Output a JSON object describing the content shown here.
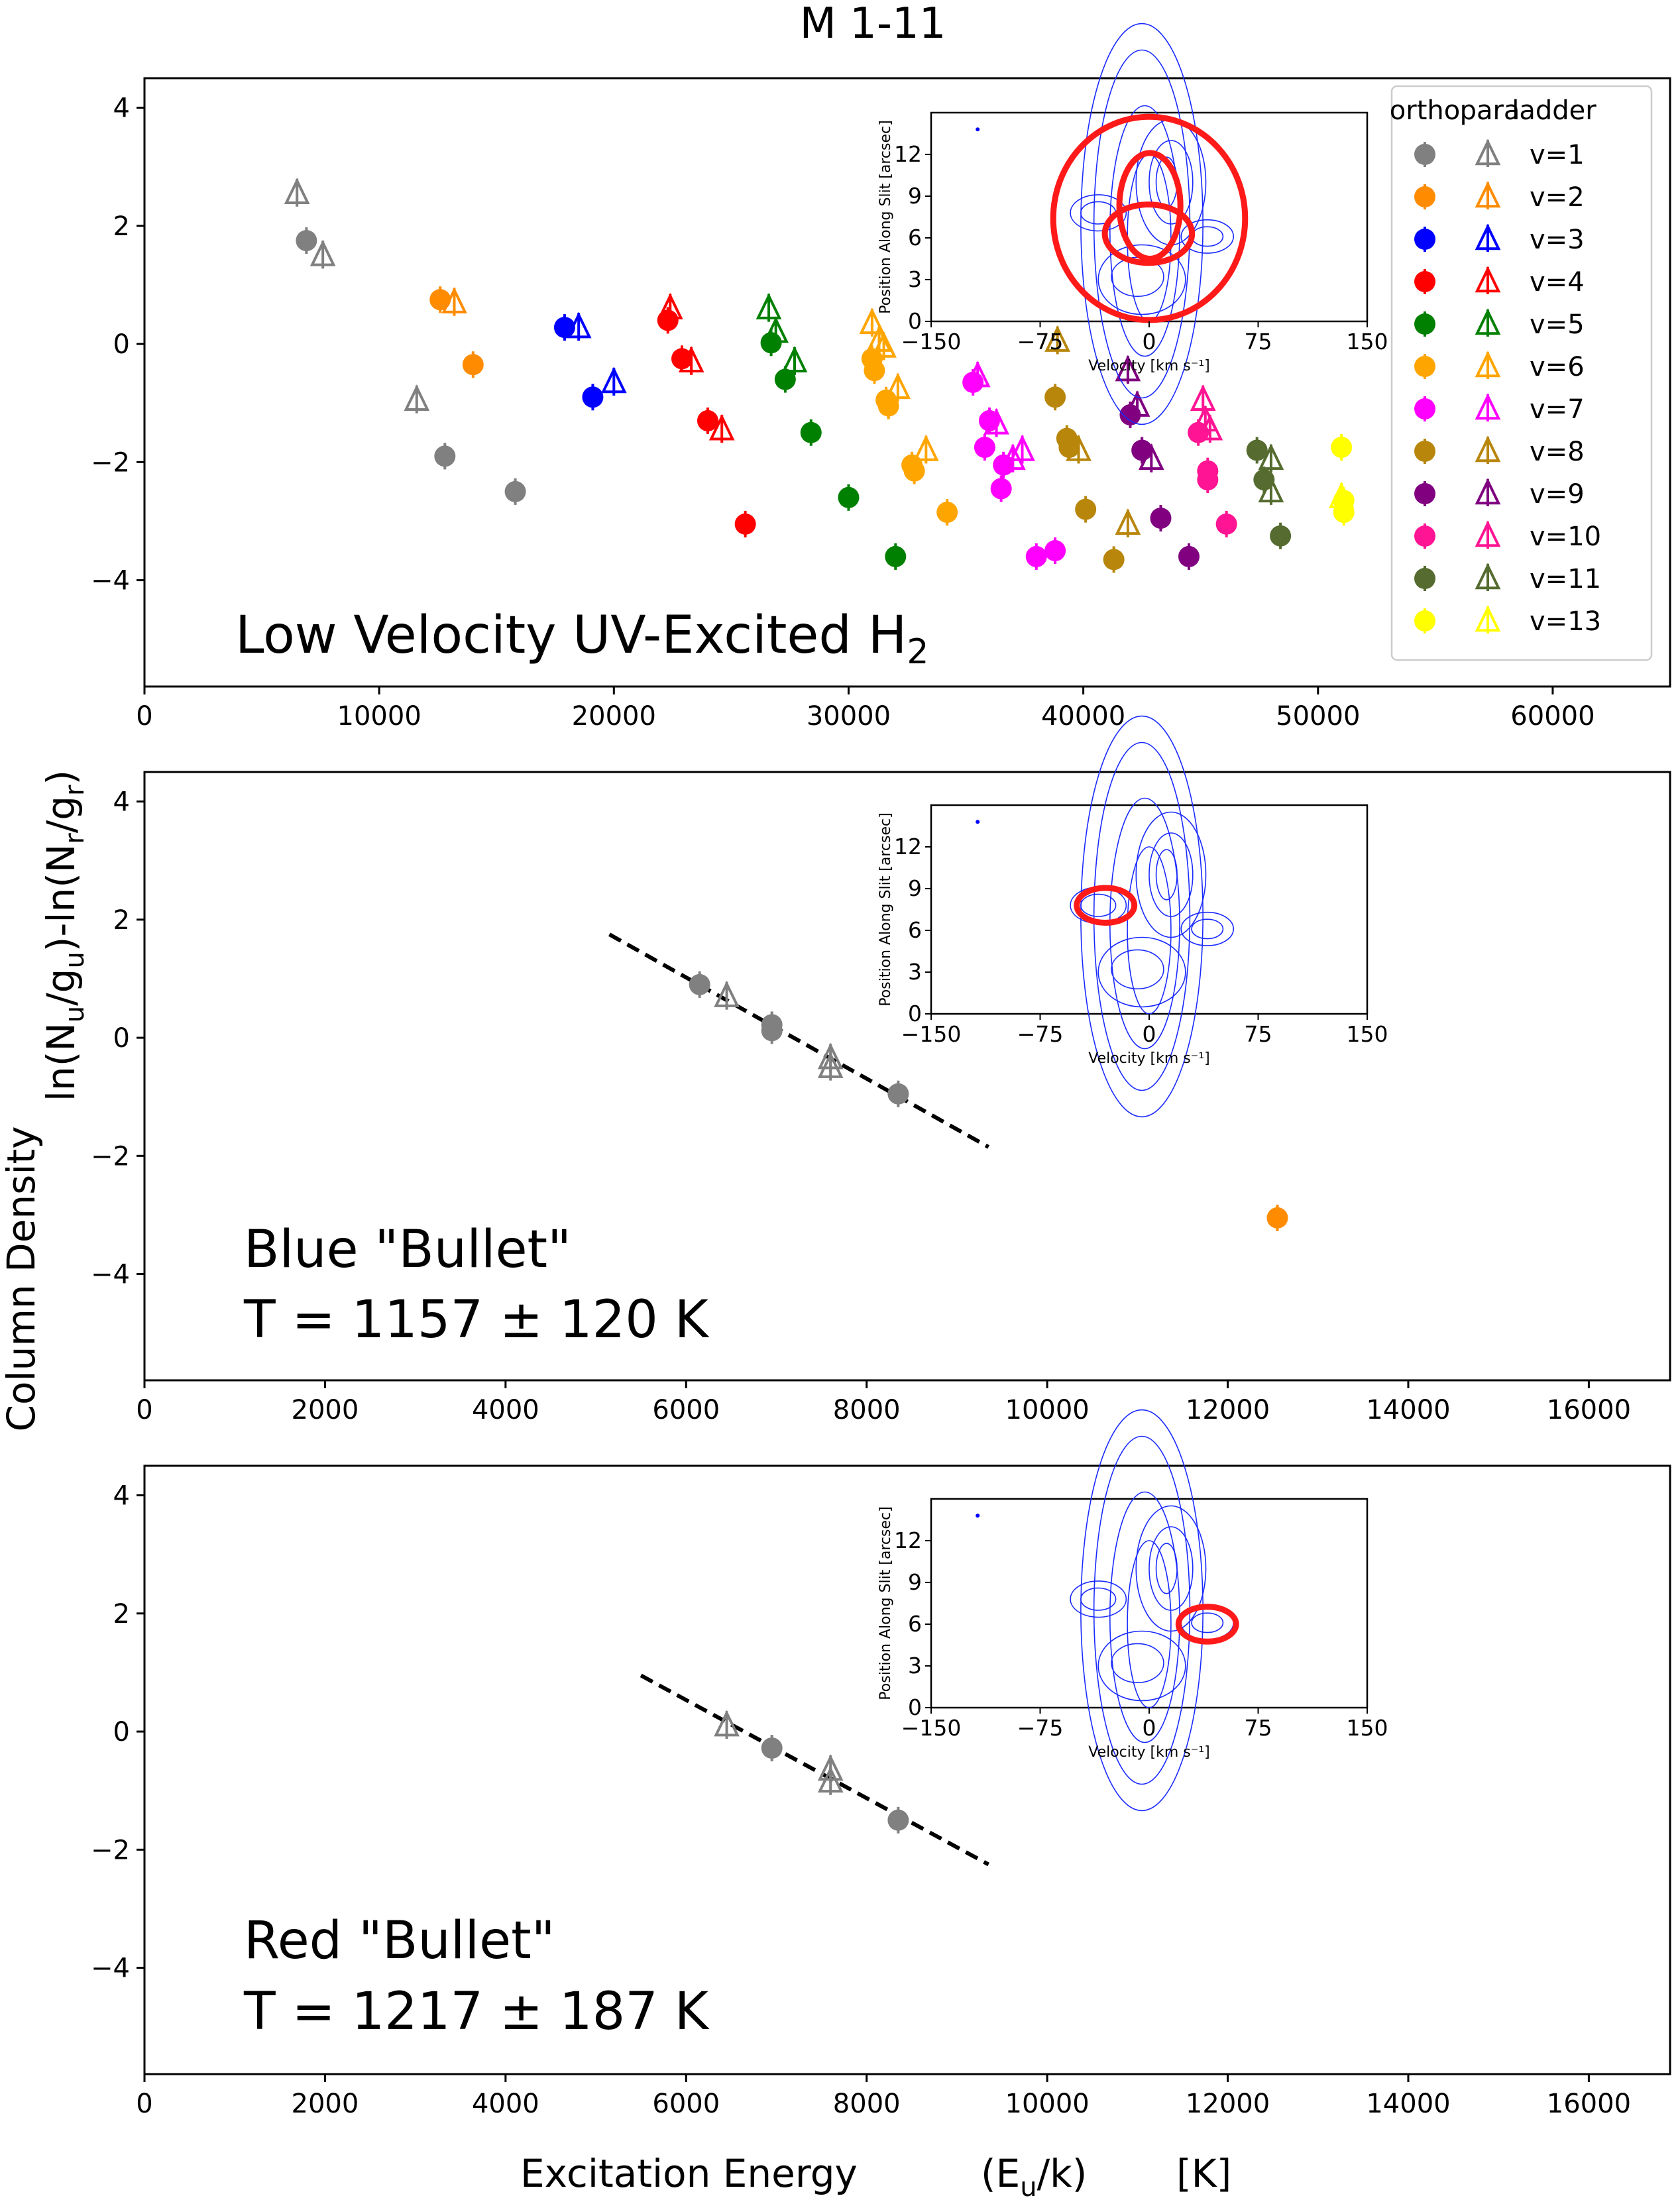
{
  "figure": {
    "title": "M 1-11",
    "xlabel_parts": [
      "Excitation Energy",
      "(E",
      "u",
      "/k)",
      "[K]"
    ],
    "ylabel_left": "Column Density",
    "ylabel_right_parts": [
      "ln(N",
      "u",
      "/g",
      "u",
      ")-ln(N",
      "r",
      "/g",
      "r",
      ")"
    ]
  },
  "legend": {
    "headers": [
      "ortho",
      "para",
      "ladder"
    ],
    "entries": [
      {
        "label": "v=1",
        "color": "#808080"
      },
      {
        "label": "v=2",
        "color": "#ff8c00"
      },
      {
        "label": "v=3",
        "color": "#0000ff"
      },
      {
        "label": "v=4",
        "color": "#ff0000"
      },
      {
        "label": "v=5",
        "color": "#008000"
      },
      {
        "label": "v=6",
        "color": "#ffa500"
      },
      {
        "label": "v=7",
        "color": "#ff00ff"
      },
      {
        "label": "v=8",
        "color": "#b8860b"
      },
      {
        "label": "v=9",
        "color": "#800080"
      },
      {
        "label": "v=10",
        "color": "#ff1493"
      },
      {
        "label": "v=11",
        "color": "#556b2f"
      },
      {
        "label": "v=13",
        "color": "#ffff00"
      }
    ]
  },
  "inset": {
    "xlabel": "Velocity [km s⁻¹]",
    "ylabel": "Position Along Slit [arcsec]",
    "xticks": [
      -150,
      -75,
      0,
      75,
      150
    ],
    "yticks": [
      0,
      3,
      6,
      9,
      12
    ],
    "xlim": [
      -150,
      150
    ],
    "ylim": [
      0,
      15
    ]
  },
  "chart_data": [
    {
      "type": "scatter",
      "title": "",
      "annotation": [
        "Low Velocity UV-Excited H",
        "2"
      ],
      "xlabel": "Excitation Energy (Eu/k) [K]",
      "ylabel": "ln(Nu/gu)-ln(Nr/gr)",
      "xlim": [
        0,
        65000
      ],
      "ylim": [
        -5.8,
        4.5
      ],
      "xticks": [
        0,
        10000,
        20000,
        30000,
        40000,
        50000,
        60000
      ],
      "yticks": [
        -4,
        -2,
        0,
        2,
        4
      ],
      "ytick_labels": [
        "−4",
        "−2",
        "0",
        "2",
        "4"
      ],
      "series": [
        {
          "name": "v=1",
          "color": "#808080",
          "ortho": [
            [
              6900,
              1.75
            ],
            [
              12800,
              -1.9
            ],
            [
              15800,
              -2.5
            ]
          ],
          "para": [
            [
              6500,
              2.55
            ],
            [
              7600,
              1.5
            ],
            [
              11600,
              -0.95
            ]
          ]
        },
        {
          "name": "v=2",
          "color": "#ff8c00",
          "ortho": [
            [
              12600,
              0.75
            ],
            [
              14000,
              -0.35
            ]
          ],
          "para": [
            [
              13200,
              0.7
            ]
          ]
        },
        {
          "name": "v=3",
          "color": "#0000ff",
          "ortho": [
            [
              17900,
              0.28
            ],
            [
              19100,
              -0.9
            ]
          ],
          "para": [
            [
              18500,
              0.28
            ],
            [
              20000,
              -0.65
            ]
          ]
        },
        {
          "name": "v=4",
          "color": "#ff0000",
          "ortho": [
            [
              22300,
              0.4
            ],
            [
              22900,
              -0.25
            ],
            [
              24000,
              -1.3
            ],
            [
              25600,
              -3.05
            ]
          ],
          "para": [
            [
              22400,
              0.6
            ],
            [
              23300,
              -0.3
            ],
            [
              24600,
              -1.45
            ]
          ]
        },
        {
          "name": "v=5",
          "color": "#008000",
          "ortho": [
            [
              26700,
              0.02
            ],
            [
              27300,
              -0.6
            ],
            [
              28400,
              -1.5
            ],
            [
              30000,
              -2.6
            ],
            [
              32000,
              -3.6
            ]
          ],
          "para": [
            [
              26600,
              0.6
            ],
            [
              26900,
              0.2
            ],
            [
              27700,
              -0.3
            ]
          ]
        },
        {
          "name": "v=6",
          "color": "#ffa500",
          "ortho": [
            [
              31000,
              -0.25
            ],
            [
              31100,
              -0.45
            ],
            [
              31600,
              -0.95
            ],
            [
              31700,
              -1.05
            ],
            [
              32700,
              -2.05
            ],
            [
              32800,
              -2.15
            ],
            [
              34200,
              -2.85
            ]
          ],
          "para": [
            [
              31000,
              0.35
            ],
            [
              31300,
              0.05
            ],
            [
              31500,
              -0.05
            ],
            [
              32100,
              -0.75
            ],
            [
              33300,
              -1.8
            ]
          ]
        },
        {
          "name": "v=7",
          "color": "#ff00ff",
          "ortho": [
            [
              35300,
              -0.65
            ],
            [
              35800,
              -1.75
            ],
            [
              36000,
              -1.3
            ],
            [
              36600,
              -2.05
            ],
            [
              36500,
              -2.45
            ],
            [
              38000,
              -3.6
            ],
            [
              38800,
              -3.5
            ]
          ],
          "para": [
            [
              35500,
              -0.55
            ],
            [
              36300,
              -1.35
            ],
            [
              37400,
              -1.8
            ],
            [
              37000,
              -1.95
            ]
          ]
        },
        {
          "name": "v=8",
          "color": "#b8860b",
          "ortho": [
            [
              38800,
              -0.9
            ],
            [
              39300,
              -1.6
            ],
            [
              39400,
              -1.75
            ],
            [
              40100,
              -2.8
            ],
            [
              41300,
              -3.65
            ]
          ],
          "para": [
            [
              38900,
              0.05
            ],
            [
              39800,
              -1.8
            ],
            [
              41900,
              -3.05
            ]
          ]
        },
        {
          "name": "v=9",
          "color": "#800080",
          "ortho": [
            [
              42000,
              -1.2
            ],
            [
              42500,
              -1.8
            ],
            [
              43300,
              -2.95
            ],
            [
              44500,
              -3.6
            ]
          ],
          "para": [
            [
              41900,
              -0.45
            ],
            [
              42300,
              -1.05
            ],
            [
              42900,
              -1.95
            ]
          ]
        },
        {
          "name": "v=10",
          "color": "#ff1493",
          "ortho": [
            [
              44900,
              -1.5
            ],
            [
              45300,
              -2.15
            ],
            [
              45300,
              -2.3
            ],
            [
              46100,
              -3.05
            ]
          ],
          "para": [
            [
              45100,
              -0.95
            ],
            [
              45200,
              -1.3
            ],
            [
              45400,
              -1.45
            ]
          ]
        },
        {
          "name": "v=11",
          "color": "#556b2f",
          "ortho": [
            [
              47400,
              -1.8
            ],
            [
              47700,
              -2.3
            ],
            [
              48400,
              -3.25
            ]
          ],
          "para": [
            [
              48000,
              -1.95
            ],
            [
              48000,
              -2.5
            ]
          ]
        },
        {
          "name": "v=13",
          "color": "#ffff00",
          "ortho": [
            [
              51000,
              -1.75
            ],
            [
              51100,
              -2.65
            ],
            [
              51100,
              -2.85
            ]
          ],
          "para": [
            [
              51000,
              -2.6
            ]
          ]
        }
      ],
      "inset_regions": [
        [
          0,
          7.4,
          1.1,
          7.3
        ],
        [
          -0.5,
          6.3,
          0.5,
          2.1
        ],
        [
          0.5,
          8.3,
          0.35,
          3.8
        ]
      ]
    },
    {
      "type": "scatter",
      "annotation": [
        "Blue \"Bullet\"",
        "T = 1157 ± 120 K"
      ],
      "xlim": [
        0,
        16900
      ],
      "ylim": [
        -5.8,
        4.5
      ],
      "xticks": [
        0,
        2000,
        4000,
        6000,
        8000,
        10000,
        12000,
        14000,
        16000
      ],
      "yticks": [
        -4,
        -2,
        0,
        2,
        4
      ],
      "ytick_labels": [
        "−4",
        "−2",
        "0",
        "2",
        "4"
      ],
      "series": [
        {
          "name": "v=1",
          "color": "#808080",
          "ortho": [
            [
              6150,
              0.9
            ],
            [
              6950,
              0.12
            ],
            [
              6950,
              0.22
            ],
            [
              8350,
              -0.95
            ]
          ],
          "para": [
            [
              6450,
              0.7
            ],
            [
              7600,
              -0.35
            ],
            [
              7600,
              -0.5
            ]
          ]
        },
        {
          "name": "v=2",
          "color": "#ff8c00",
          "ortho": [
            [
              12550,
              -3.05
            ]
          ],
          "para": []
        }
      ],
      "fit_line": [
        [
          5150,
          1.75
        ],
        [
          9350,
          -1.85
        ]
      ],
      "inset_regions": [
        [
          -30,
          7.8,
          0.33,
          1.25
        ]
      ]
    },
    {
      "type": "scatter",
      "annotation": [
        "Red \"Bullet\"",
        "T = 1217 ± 187 K"
      ],
      "xlim": [
        0,
        16900
      ],
      "ylim": [
        -5.8,
        4.5
      ],
      "xticks": [
        0,
        2000,
        4000,
        6000,
        8000,
        10000,
        12000,
        14000,
        16000
      ],
      "yticks": [
        -4,
        -2,
        0,
        2,
        4
      ],
      "ytick_labels": [
        "−4",
        "−2",
        "0",
        "2",
        "4"
      ],
      "series": [
        {
          "name": "v=1",
          "color": "#808080",
          "ortho": [
            [
              6950,
              -0.28
            ],
            [
              8350,
              -1.5
            ]
          ],
          "para": [
            [
              6450,
              0.1
            ],
            [
              7600,
              -0.65
            ],
            [
              7600,
              -0.85
            ]
          ]
        }
      ],
      "fit_line": [
        [
          5500,
          0.95
        ],
        [
          9350,
          -2.25
        ]
      ],
      "inset_regions": [
        [
          40,
          6.0,
          0.33,
          1.25
        ]
      ]
    }
  ]
}
